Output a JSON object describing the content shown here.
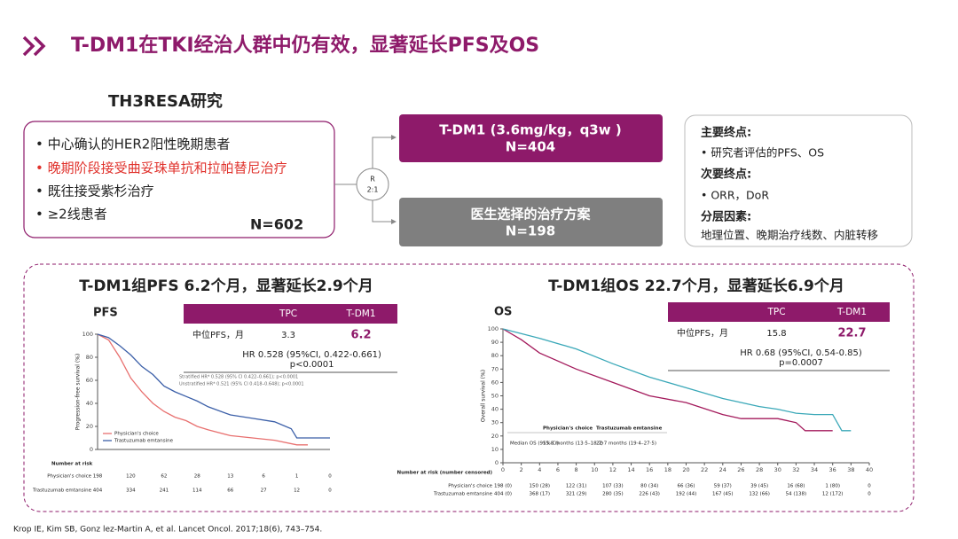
{
  "header": {
    "title": "T-DM1在TKI经治人群中仍有效，显著延长PFS及OS"
  },
  "study": {
    "title": "TH3RESA研究",
    "bullets": [
      "• 中心确认的HER2阳性晚期患者",
      "• 晚期阶段接受曲妥珠单抗和拉帕替尼治疗",
      "• 既往接受紫杉治疗",
      "• ≥2线患者"
    ],
    "n": "N=602",
    "randomization": [
      "R",
      "2:1"
    ],
    "arms": [
      {
        "name": "T-DM1 (3.6mg/kg，q3w )",
        "n": "N=404"
      },
      {
        "name": "医生选择的治疗方案",
        "n": "N=198"
      }
    ],
    "endpoints": [
      "主要终点:",
      "• 研究者评估的PFS、OS",
      "次要终点:",
      "• ORR，DoR",
      "分层因素:",
      "地理位置、晚期治疗线数、内脏转移"
    ]
  },
  "chart_data": [
    {
      "type": "line",
      "title": "T-DM1组PFS 6.2个月，显著延长2.9个月",
      "label": "PFS",
      "y_label": "Progression-free survival (%)",
      "xlim": [
        0,
        21
      ],
      "ylim": [
        0,
        100
      ],
      "yticks": [
        0,
        20,
        40,
        60,
        80,
        100
      ],
      "legend": "lower left",
      "series": [
        {
          "name": "Physician's choice",
          "color": "#e8706f",
          "x": [
            0,
            1,
            2,
            3,
            4,
            5,
            6,
            7,
            8,
            9,
            10,
            12,
            14,
            16,
            18,
            19
          ],
          "values": [
            100,
            95,
            80,
            62,
            50,
            40,
            33,
            28,
            25,
            20,
            17,
            12,
            10,
            8,
            4,
            4
          ]
        },
        {
          "name": "Trastuzumab emtansine",
          "color": "#3b5fa8",
          "x": [
            0,
            1,
            2,
            3,
            4,
            5,
            6,
            7,
            8,
            9,
            10,
            12,
            14,
            16,
            17.5,
            18,
            21
          ],
          "values": [
            100,
            97,
            90,
            82,
            72,
            65,
            55,
            50,
            46,
            42,
            37,
            30,
            27,
            24,
            18,
            10,
            10
          ]
        }
      ],
      "summary": {
        "columns": [
          "TPC",
          "T-DM1"
        ],
        "row_label": "中位PFS，月",
        "values": [
          3.3,
          6.2
        ],
        "hr": "HR 0.528 (95%CI, 0.422-0.661)",
        "p": "p<0.0001"
      },
      "notes": [
        "Stratified HR* 0.528 (95% CI 0.422–0.661); p<0.0001",
        "Unstratified HR* 0.521 (95% CI 0.418–0.648); p<0.0001"
      ],
      "risk_table": {
        "title": "Number at risk",
        "rows": [
          [
            198,
            120,
            62,
            28,
            13,
            6,
            1,
            0
          ],
          [
            404,
            334,
            241,
            114,
            66,
            27,
            12,
            0
          ]
        ]
      }
    },
    {
      "type": "line",
      "title": "T-DM1组OS 22.7个月，显著延长6.9个月",
      "label": "OS",
      "y_label": "Overall survival (%)",
      "xlim": [
        0,
        40
      ],
      "xticks": [
        0,
        2,
        4,
        6,
        8,
        10,
        12,
        14,
        16,
        18,
        20,
        22,
        24,
        26,
        28,
        30,
        32,
        34,
        36,
        38,
        40
      ],
      "ylim": [
        0,
        100
      ],
      "yticks": [
        0,
        10,
        20,
        30,
        40,
        50,
        60,
        70,
        80,
        90,
        100
      ],
      "series": [
        {
          "name": "Physician's choice",
          "color": "#a3195b",
          "x": [
            0,
            2,
            4,
            8,
            12,
            16,
            20,
            24,
            26,
            28,
            30,
            32,
            33,
            36
          ],
          "values": [
            100,
            92,
            82,
            70,
            60,
            50,
            45,
            36,
            33,
            33,
            33,
            30,
            24,
            24
          ]
        },
        {
          "name": "Trastuzumab emtansine",
          "color": "#3aa8b8",
          "x": [
            0,
            4,
            8,
            12,
            16,
            20,
            24,
            28,
            30,
            32,
            34,
            36,
            37,
            38
          ],
          "values": [
            100,
            93,
            85,
            74,
            64,
            56,
            48,
            42,
            40,
            37,
            36,
            36,
            24,
            24
          ]
        }
      ],
      "summary": {
        "columns": [
          "TPC",
          "T-DM1"
        ],
        "row_label": "中位PFS，月",
        "values": [
          15.8,
          22.7
        ],
        "hr": "HR 0.68 (95%CI, 0.54-0.85)",
        "p": "p=0.0007"
      },
      "median_table": {
        "row_label": "Median OS (95% CI)",
        "cells": [
          "15·8 months (13·5–18·7)",
          "22·7 months (19·4–27·5)"
        ]
      },
      "risk_table": {
        "title": "Number at risk (number censored)",
        "rows": [
          [
            "198 (0)",
            "150 (28)",
            "122 (31)",
            "107 (33)",
            "80 (34)",
            "66 (36)",
            "59 (37)",
            "39 (45)",
            "16 (68)",
            "1 (80)",
            "0"
          ],
          [
            "404 (0)",
            "368 (17)",
            "321 (29)",
            "280 (35)",
            "226 (43)",
            "192 (44)",
            "167 (45)",
            "132 (66)",
            "54 (138)",
            "12 (172)",
            "0"
          ]
        ]
      }
    }
  ],
  "footnote": "Krop IE, Kim SB, Gonz lez-Martin A, et al. Lancet Oncol. 2017;18(6), 743–754."
}
